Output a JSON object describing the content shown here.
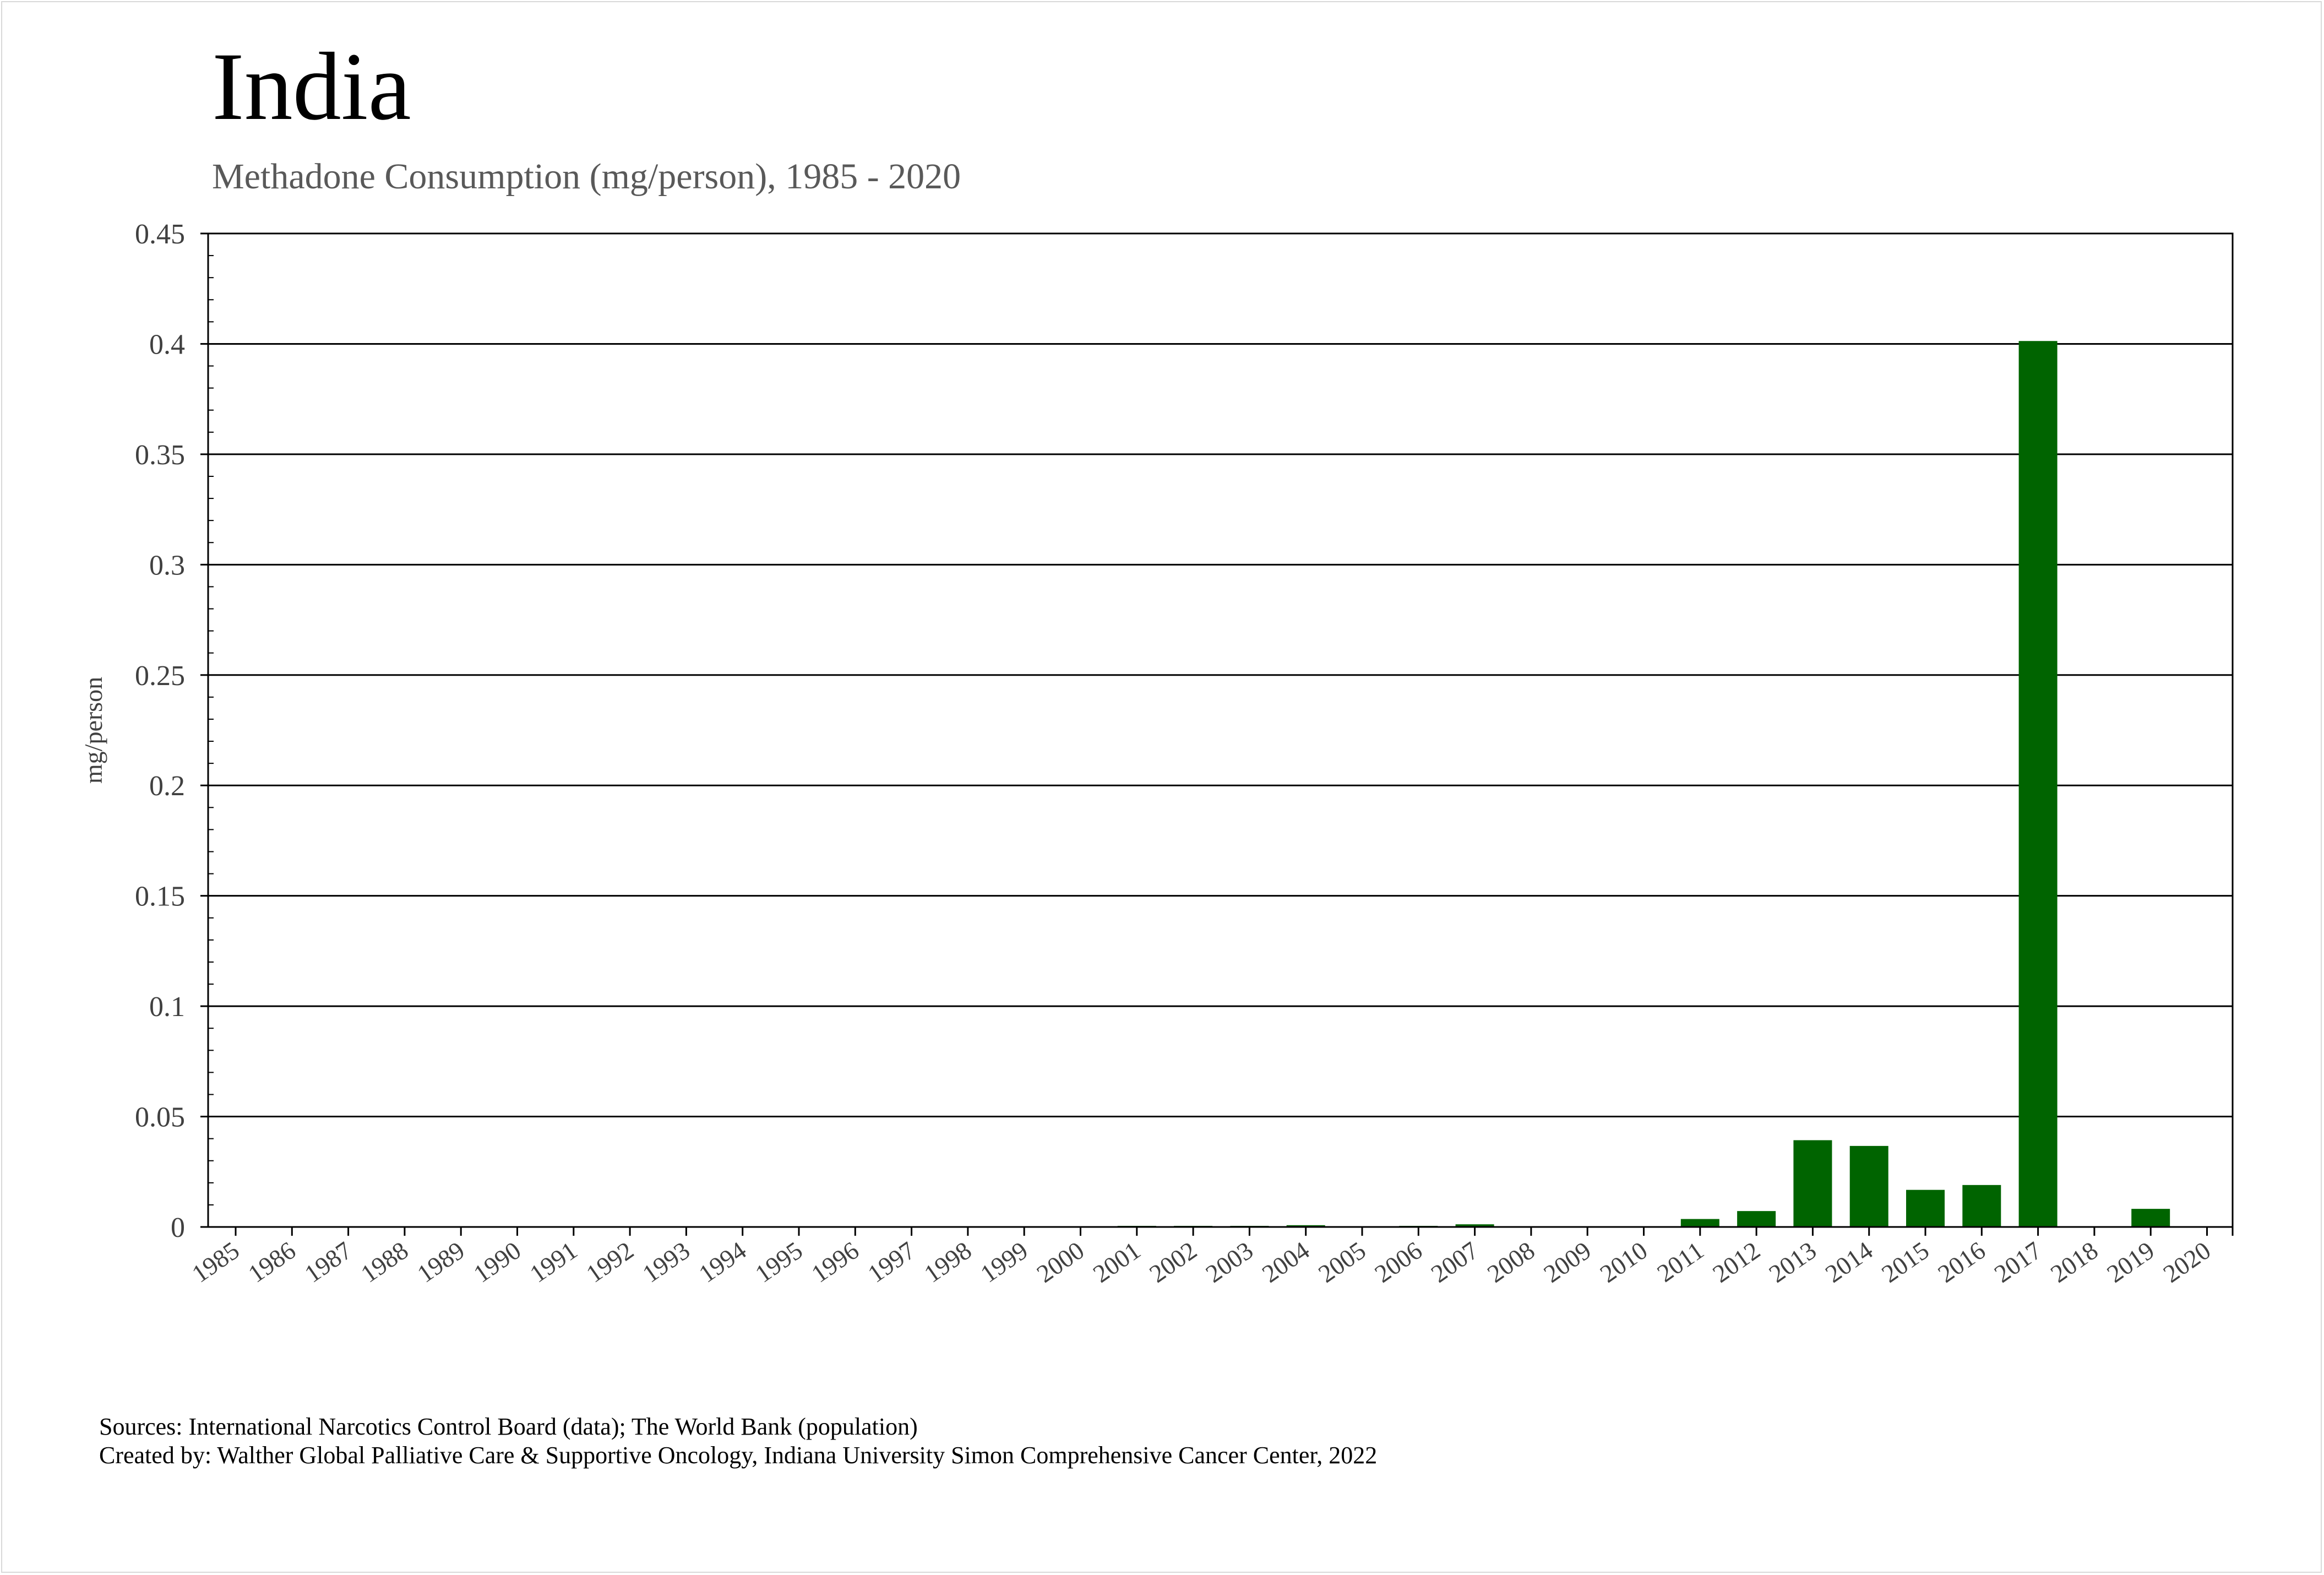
{
  "header": {
    "title": "India",
    "subtitle": "Methadone Consumption (mg/person), 1985 - 2020"
  },
  "footer": {
    "sources": "Sources: International Narcotics Control Board (data); The World Bank (population)",
    "created_by": "Created by: Walther Global Palliative Care & Supportive Oncology, Indiana University Simon Comprehensive Cancer Center, 2022"
  },
  "chart_data": {
    "type": "bar",
    "title": "India",
    "subtitle": "Methadone Consumption (mg/person), 1985 - 2020",
    "xlabel": "",
    "ylabel": "mg/person",
    "ylim": [
      0,
      0.45
    ],
    "yticks": [
      "0",
      "0.05",
      "0.1",
      "0.15",
      "0.2",
      "0.25",
      "0.3",
      "0.35",
      "0.4",
      "0.45"
    ],
    "grid": true,
    "bar_color": "#006400",
    "categories": [
      "1985",
      "1986",
      "1987",
      "1988",
      "1989",
      "1990",
      "1991",
      "1992",
      "1993",
      "1994",
      "1995",
      "1996",
      "1997",
      "1998",
      "1999",
      "2000",
      "2001",
      "2002",
      "2003",
      "2004",
      "2005",
      "2006",
      "2007",
      "2008",
      "2009",
      "2010",
      "2011",
      "2012",
      "2013",
      "2014",
      "2015",
      "2016",
      "2017",
      "2018",
      "2019",
      "2020"
    ],
    "values": [
      0,
      0,
      0,
      0,
      0,
      0,
      0,
      0,
      0,
      0,
      0,
      0,
      0,
      0,
      0,
      0,
      0.0003,
      0.0003,
      0.0002,
      0.0008,
      0,
      0.0004,
      0.0012,
      0,
      0,
      0,
      0.0036,
      0.0072,
      0.0393,
      0.0367,
      0.0168,
      0.019,
      0.4013,
      0,
      0.0082,
      0
    ]
  }
}
